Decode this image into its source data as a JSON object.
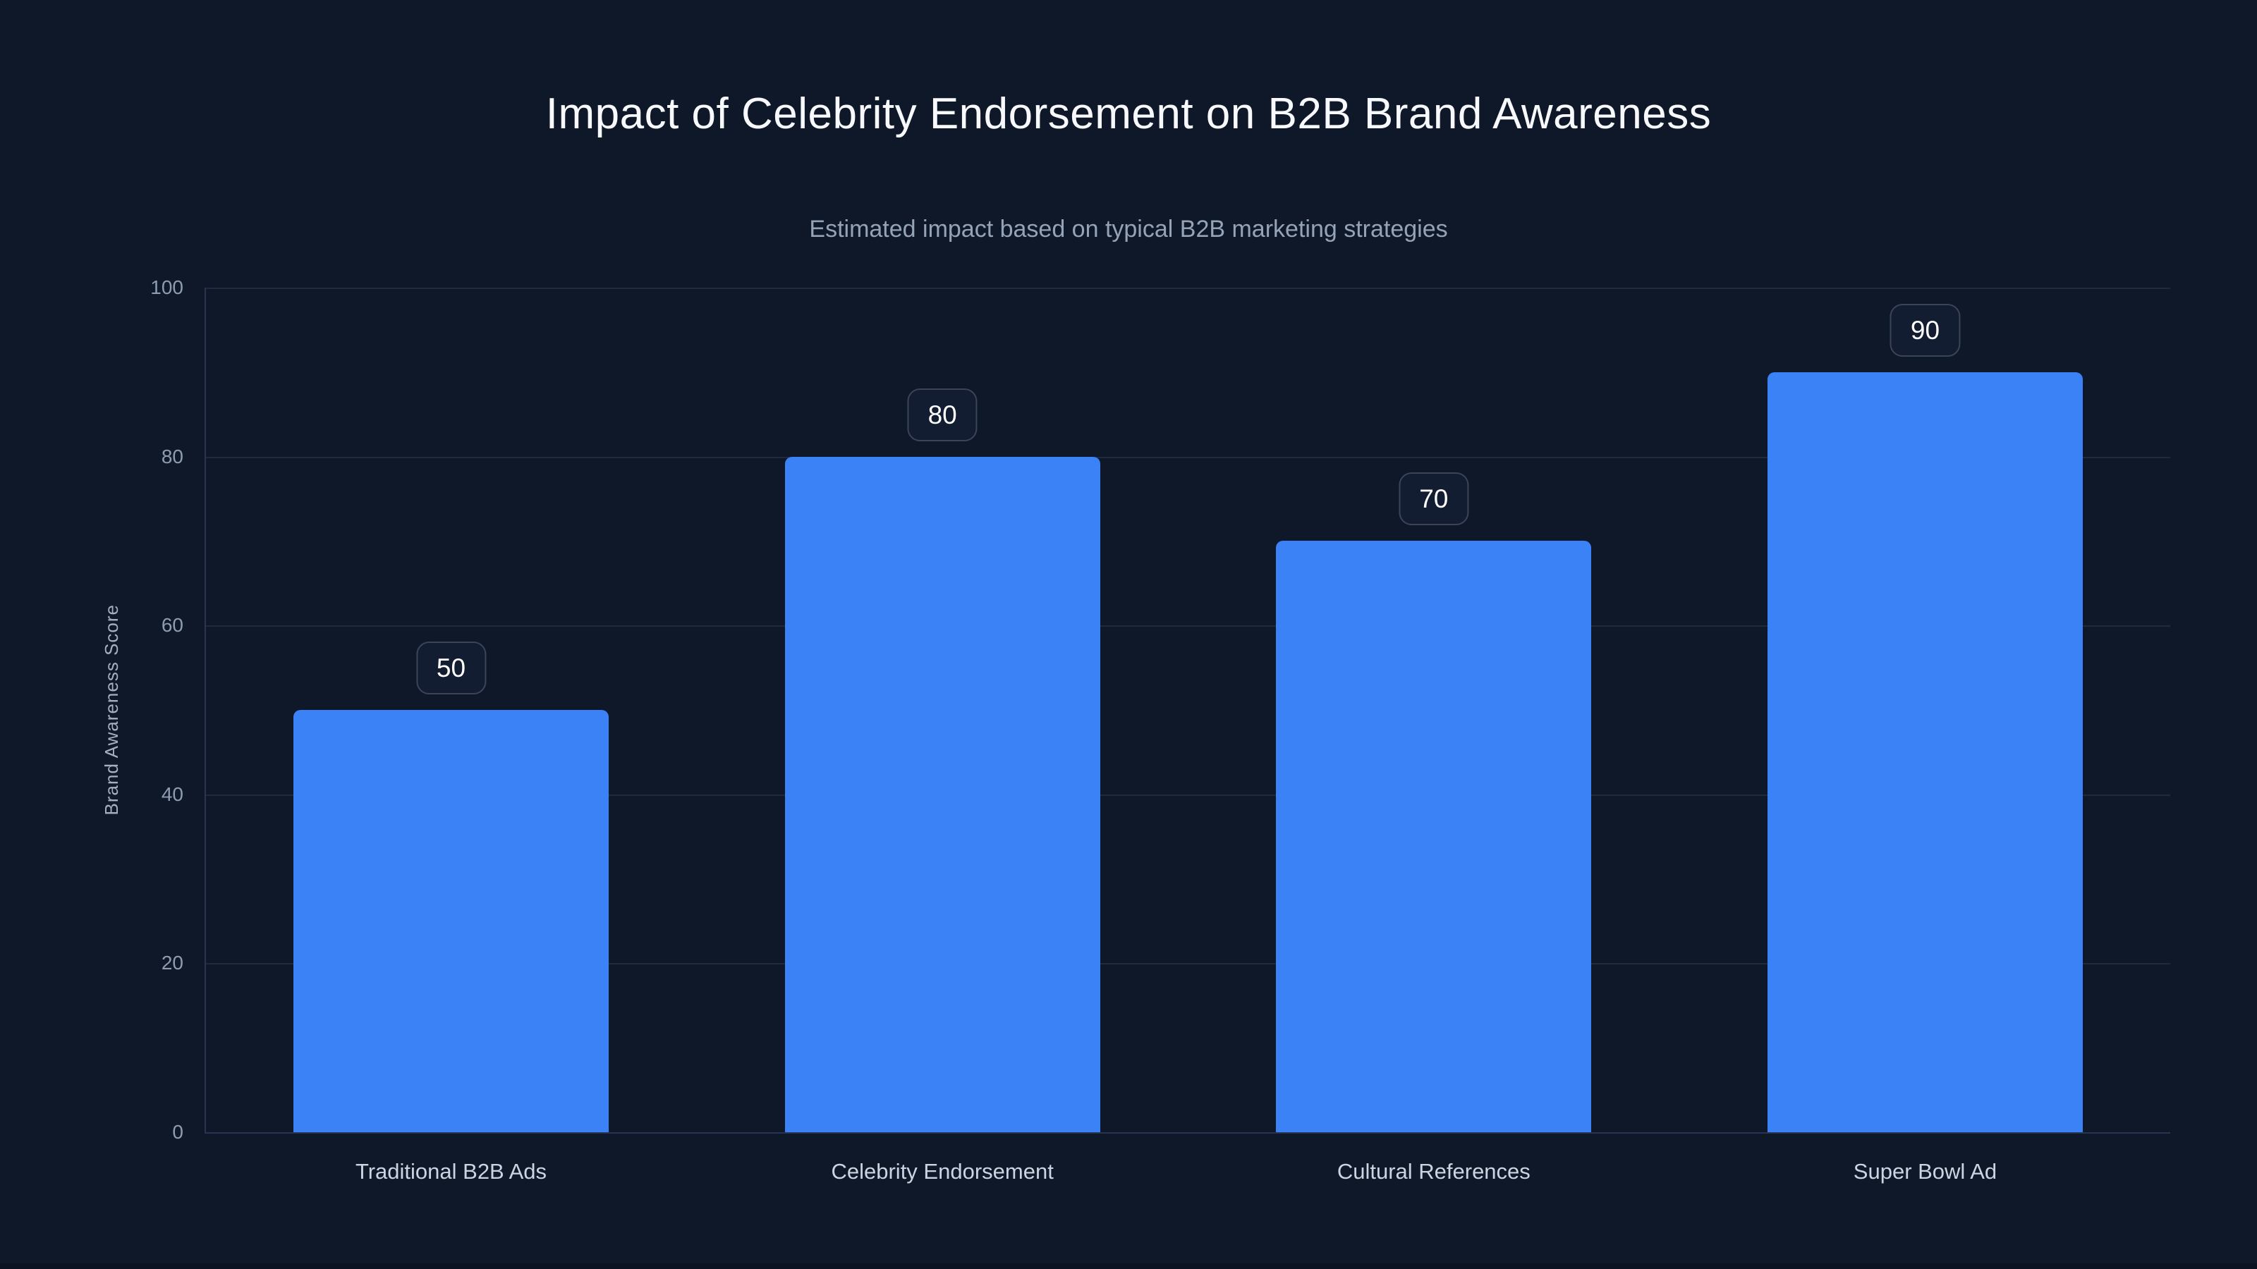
{
  "page": {
    "background_color": "#0f1828",
    "bottom_strip_color": "#0b1322"
  },
  "chart_data": {
    "type": "bar",
    "title": "Impact of Celebrity Endorsement on B2B Brand Awareness",
    "subtitle": "Estimated impact based on typical B2B marketing strategies",
    "ylabel": "Brand Awareness Score",
    "xlabel": "",
    "categories": [
      "Traditional B2B Ads",
      "Celebrity Endorsement",
      "Cultural References",
      "Super Bowl Ad"
    ],
    "values": [
      50,
      80,
      70,
      90
    ],
    "value_labels": [
      "50",
      "80",
      "70",
      "90"
    ],
    "ylim": [
      0,
      100
    ],
    "yticks": [
      0,
      20,
      40,
      60,
      80,
      100
    ],
    "grid": true,
    "legend": false,
    "bar_color": "#3b82f6",
    "title_color": "#f7f9fc",
    "subtitle_color": "#94a3b8",
    "tick_color": "#8e9cb1",
    "category_label_color": "#cbd5e1",
    "gridline_color": "#1f2a3e",
    "badge_border_color": "#3b4557",
    "badge_text_color": "#ffffff"
  }
}
